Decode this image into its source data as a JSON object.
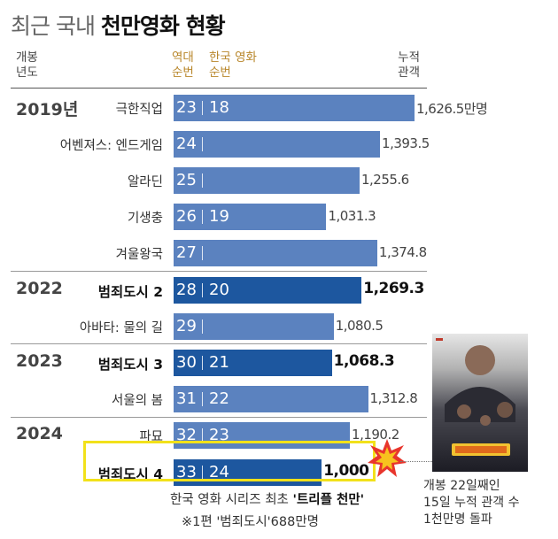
{
  "title": {
    "light": "최근 국내",
    "bold": "천만영화 현황"
  },
  "headers": {
    "year": [
      "개봉",
      "년도"
    ],
    "all_rank": [
      "역대",
      "순번"
    ],
    "kr_rank": [
      "한국 영화",
      "순번"
    ],
    "total": [
      "누적",
      "관객"
    ]
  },
  "colors": {
    "bar": "#5b82bf",
    "bar_highlight": "#1d579f",
    "rank_accent": "#b8862a",
    "callout_box": "#f2e11a"
  },
  "chart_data": {
    "type": "bar",
    "orientation": "horizontal",
    "unit": "만명",
    "rows": [
      {
        "year": "2019년",
        "movie": "극한직업",
        "rank_all": "23",
        "rank_kr": "18",
        "value": 1626.5,
        "value_label": "1,626.5만명",
        "highlight": false
      },
      {
        "year": "",
        "movie": "어벤져스: 엔드게임",
        "rank_all": "24",
        "rank_kr": "",
        "value": 1393.5,
        "value_label": "1,393.5",
        "highlight": false
      },
      {
        "year": "",
        "movie": "알라딘",
        "rank_all": "25",
        "rank_kr": "",
        "value": 1255.6,
        "value_label": "1,255.6",
        "highlight": false
      },
      {
        "year": "",
        "movie": "기생충",
        "rank_all": "26",
        "rank_kr": "19",
        "value": 1031.3,
        "value_label": "1,031.3",
        "highlight": false
      },
      {
        "year": "",
        "movie": "겨울왕국",
        "rank_all": "27",
        "rank_kr": "",
        "value": 1374.8,
        "value_label": "1,374.8",
        "highlight": false
      },
      {
        "year": "2022",
        "movie": "범죄도시 2",
        "rank_all": "28",
        "rank_kr": "20",
        "value": 1269.3,
        "value_label": "1,269.3",
        "highlight": true
      },
      {
        "year": "",
        "movie": "아바타: 물의 길",
        "rank_all": "29",
        "rank_kr": "",
        "value": 1080.5,
        "value_label": "1,080.5",
        "highlight": false
      },
      {
        "year": "2023",
        "movie": "범죄도시 3",
        "rank_all": "30",
        "rank_kr": "21",
        "value": 1068.3,
        "value_label": "1,068.3",
        "highlight": true
      },
      {
        "year": "",
        "movie": "서울의 봄",
        "rank_all": "31",
        "rank_kr": "22",
        "value": 1312.8,
        "value_label": "1,312.8",
        "highlight": false
      },
      {
        "year": "2024",
        "movie": "파묘",
        "rank_all": "32",
        "rank_kr": "23",
        "value": 1190.2,
        "value_label": "1,190.2",
        "highlight": false
      },
      {
        "year": "",
        "movie": "범죄도시 4",
        "rank_all": "33",
        "rank_kr": "24",
        "value": 1000,
        "value_label": "1,000",
        "highlight": true
      }
    ]
  },
  "footer": {
    "line1_pre": "한국 영화 시리즈 최초 ",
    "line1_bold": "'트리플 천만'",
    "line2": "※1편 '범죄도시'688만명"
  },
  "poster_caption": [
    "개봉 22일째인",
    "15일 누적 관객 수",
    "1천만명 돌파"
  ]
}
